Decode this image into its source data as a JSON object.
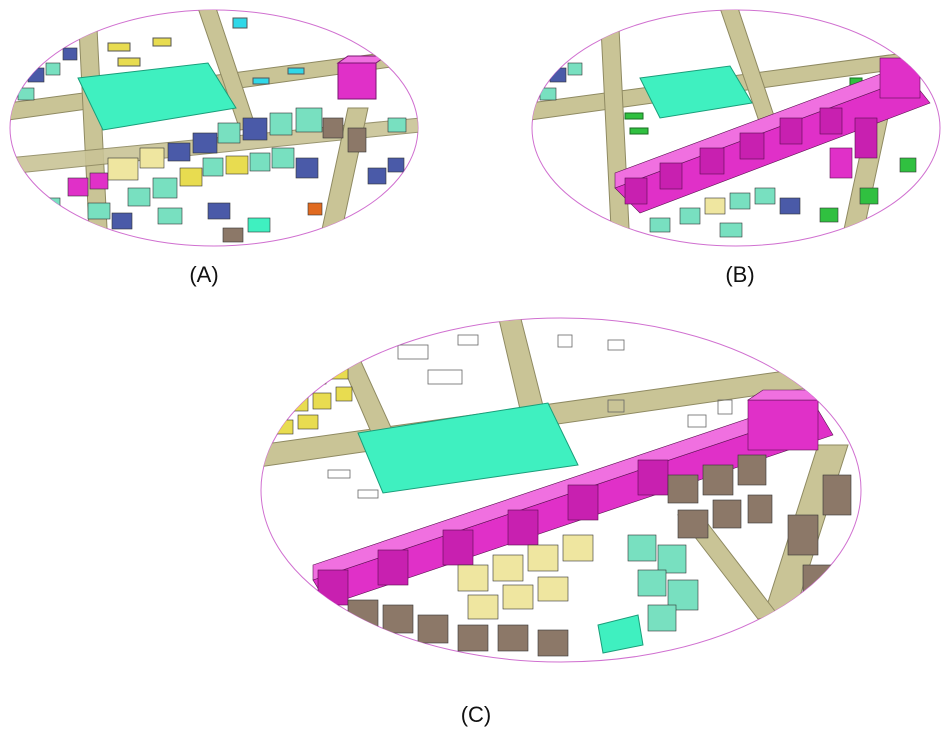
{
  "panels": [
    {
      "id": "A",
      "caption": "(A)"
    },
    {
      "id": "B",
      "caption": "(B)"
    },
    {
      "id": "C",
      "caption": "(C)"
    }
  ],
  "colors": {
    "road": "#c9c496",
    "road_edge": "#8f8a62",
    "park": "#3ff0c0",
    "magenta": "#e030c8",
    "brown": "#8c7868",
    "cream": "#efe6a0",
    "teal": "#78e0c0",
    "navy": "#4a5aa8",
    "yellow": "#e8dc50",
    "cyan": "#30d8e8",
    "green": "#30c040",
    "ellipse_edge": "#d070d0"
  }
}
